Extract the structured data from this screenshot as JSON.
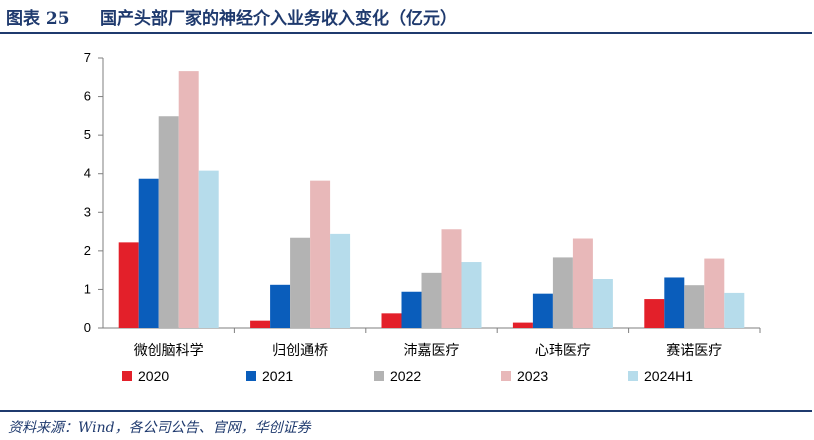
{
  "header": {
    "figure_label": "图表 25",
    "title": "国产头部厂家的神经介入业务收入变化（亿元）"
  },
  "footer": {
    "source": "资料来源：Wind，各公司公告、官网，华创证券"
  },
  "chart_data": {
    "type": "bar",
    "title": "国产头部厂家的神经介入业务收入变化（亿元）",
    "xlabel": "",
    "ylabel": "",
    "ylim": [
      0,
      7
    ],
    "yticks": [
      0,
      1,
      2,
      3,
      4,
      5,
      6,
      7
    ],
    "grid": false,
    "legend_position": "bottom",
    "categories": [
      "微创脑科学",
      "归创通桥",
      "沛嘉医疗",
      "心玮医疗",
      "赛诺医疗"
    ],
    "series": [
      {
        "name": "2020",
        "color": "#e3202a",
        "values": [
          2.22,
          0.19,
          0.38,
          0.14,
          0.75
        ]
      },
      {
        "name": "2021",
        "color": "#0a5dbb",
        "values": [
          3.87,
          1.12,
          0.94,
          0.89,
          1.31
        ]
      },
      {
        "name": "2022",
        "color": "#b3b3b3",
        "values": [
          5.49,
          2.34,
          1.43,
          1.83,
          1.11
        ]
      },
      {
        "name": "2023",
        "color": "#e8b8b9",
        "values": [
          6.66,
          3.82,
          2.56,
          2.32,
          1.8
        ]
      },
      {
        "name": "2024H1",
        "color": "#b6dceb",
        "values": [
          4.08,
          2.44,
          1.71,
          1.27,
          0.91
        ]
      }
    ]
  }
}
